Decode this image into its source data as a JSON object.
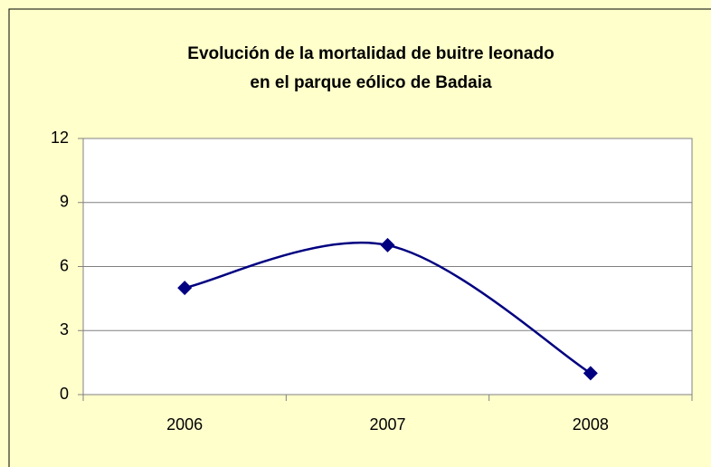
{
  "chart_data": {
    "type": "line",
    "title": [
      "Evolución de la mortalidad de buitre leonado",
      "en el parque eólico de Badaia"
    ],
    "categories": [
      "2006",
      "2007",
      "2008"
    ],
    "values": [
      5,
      7,
      1
    ],
    "color": "#000080",
    "smooth": true,
    "ylim": [
      0,
      12
    ],
    "yticks": [
      0,
      3,
      6,
      9,
      12
    ],
    "grid": true
  }
}
